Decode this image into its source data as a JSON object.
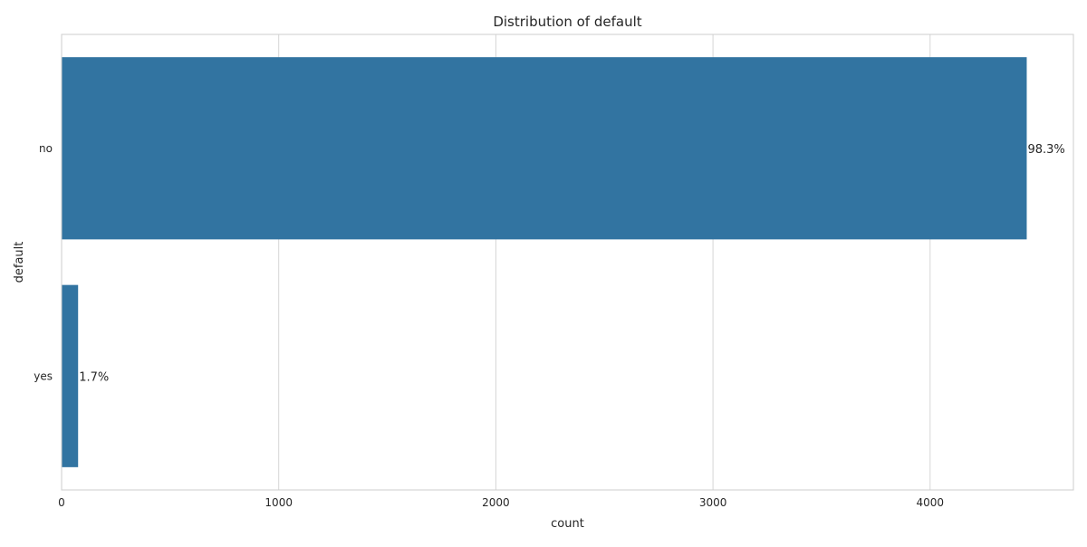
{
  "chart_data": {
    "type": "bar",
    "orientation": "horizontal",
    "title": "Distribution of default",
    "xlabel": "count",
    "ylabel": "default",
    "categories": [
      "no",
      "yes"
    ],
    "values": [
      4445,
      76
    ],
    "data_labels": [
      "98.3%",
      "1.7%"
    ],
    "xlim": [
      0,
      4660
    ],
    "xticks": [
      0,
      1000,
      2000,
      3000,
      4000
    ],
    "grid": true,
    "bar_color": "#3274a1"
  }
}
